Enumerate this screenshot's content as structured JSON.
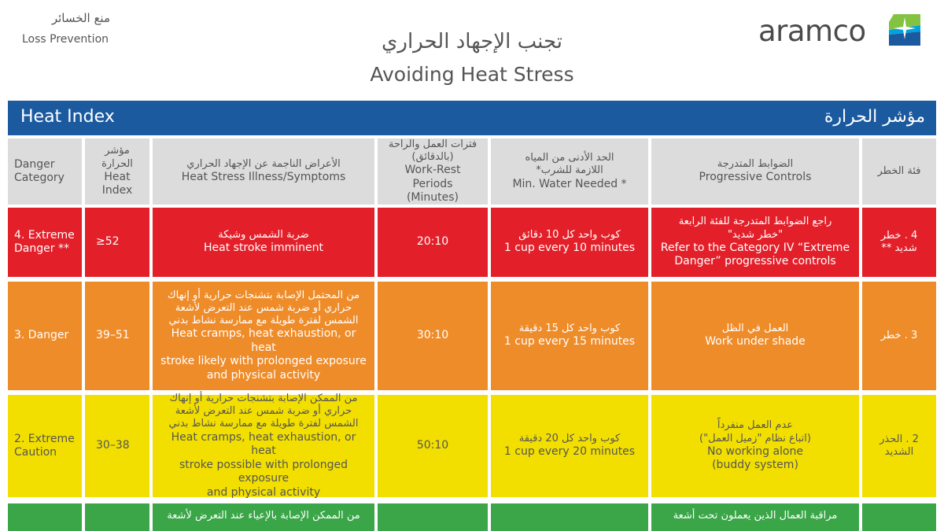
{
  "corner": {
    "arabic": "منع الخسائر",
    "english": "Loss Prevention"
  },
  "title": {
    "arabic": "تجنب الإجهاد الحراري",
    "english": "Avoiding Heat Stress"
  },
  "logo": {
    "text": "aramco"
  },
  "header": {
    "english": "Heat Index",
    "arabic": "مؤشر الحرارة"
  },
  "columns": {
    "danger_en_1": "Danger",
    "danger_en_2": "Category",
    "heat_ar": "مؤشر الحرارة",
    "heat_en": "Heat Index",
    "symptoms_ar": "الأعراض الناجمة عن الإجهاد الحراري",
    "symptoms_en": "Heat Stress Illness/Symptoms",
    "work_ar_1": "فترات العمل والراحة",
    "work_ar_2": "(بالدقائق)",
    "work_en_1": "Work-Rest Periods",
    "work_en_2": "(Minutes)",
    "water_ar_1": "الحد الأدنى من المياه",
    "water_ar_2": "اللازمة للشرب*",
    "water_en": "Min. Water Needed *",
    "controls_ar": "الضوابط المتدرجة",
    "controls_en": "Progressive Controls",
    "cat_ar": "فئة الخطر"
  },
  "rows": [
    {
      "category_en_1": "4. Extreme",
      "category_en_2": "Danger **",
      "heat_index": "≥52",
      "symptoms_ar": "ضربة الشمس وشيكة",
      "symptoms_en": "Heat stroke imminent",
      "work_rest": "20:10",
      "water_ar": "كوب واحد كل 10 دقائق",
      "water_en": "1 cup every 10 minutes",
      "controls_ar_1": "راجع الضوابط المتدرجة للفئة الرابعة",
      "controls_ar_2": "\"خطر شديد\"",
      "controls_en_1": "Refer to the Category IV “Extreme",
      "controls_en_2": "Danger” progressive controls",
      "category_ar_1": "4 . خطر",
      "category_ar_2": "شديد **"
    },
    {
      "category_en_1": "3. Danger",
      "category_en_2": "",
      "heat_index": "39–51",
      "symptoms_ar_1": "من المحتمل الإصابة بتشنجات حرارية أو إنهاك",
      "symptoms_ar_2": "حراري أو ضربة شمس عند التعرض لأشعة",
      "symptoms_ar_3": "الشمس لفترة طويلة مع ممارسة نشاط بدني",
      "symptoms_en_1": "Heat cramps, heat exhaustion, or heat",
      "symptoms_en_2": "stroke likely with prolonged exposure",
      "symptoms_en_3": "and physical activity",
      "work_rest": "30:10",
      "water_ar": "كوب واحد كل 15 دقيقة",
      "water_en": "1 cup every 15 minutes",
      "controls_ar": "العمل في الظل",
      "controls_en": "Work under shade",
      "category_ar": "3 . خطر"
    },
    {
      "category_en_1": "2. Extreme",
      "category_en_2": "Caution",
      "heat_index": "30–38",
      "symptoms_ar_1": "من الممكن الإصابة بتشنجات حرارية أو إنهاك",
      "symptoms_ar_2": "حراري أو ضربة شمس عند التعرض لأشعة",
      "symptoms_ar_3": "الشمس لفترة طويلة مع ممارسة نشاط بدني",
      "symptoms_en_1": "Heat cramps, heat exhaustion, or heat",
      "symptoms_en_2": "stroke possible with prolonged exposure",
      "symptoms_en_3": "and physical activity",
      "work_rest": "50:10",
      "water_ar": "كوب واحد كل 20 دقيقة",
      "water_en": "1 cup every 20 minutes",
      "controls_ar_1": "عدم العمل منفرداً",
      "controls_ar_2": "(اتباع نظام \"زميل العمل\")",
      "controls_en_1": "No working alone",
      "controls_en_2": "(buddy system)",
      "category_ar_1": "2 . الحذر",
      "category_ar_2": "الشديد"
    },
    {
      "symptoms_ar": "من الممكن الإصابة بالإعياء عند التعرض لأشعة",
      "controls_ar": "مراقبة العمال الذين يعملون تحت أشعة"
    }
  ],
  "colors": {
    "header_blue": "#1b5a9f",
    "extreme_danger": "#e3202a",
    "danger": "#ef8c2a",
    "extreme_caution": "#f2df00",
    "caution": "#3aa648",
    "column_header": "#dcdcdc"
  }
}
